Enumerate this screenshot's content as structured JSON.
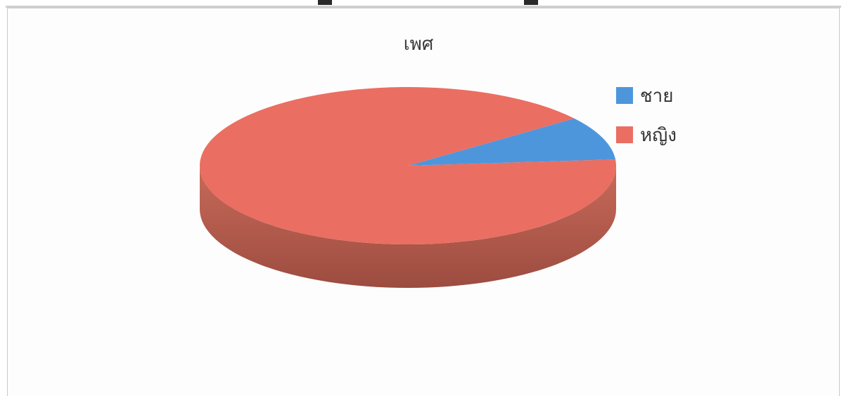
{
  "chart_data": {
    "type": "pie",
    "title": "เพศ",
    "categories": [
      "ชาย",
      "หญิง"
    ],
    "values": [
      9,
      91
    ],
    "colors": [
      "#4e96dc",
      "#eb6e62"
    ],
    "side_color": "#b65a4c",
    "legend_position": "right",
    "style": "3d"
  }
}
